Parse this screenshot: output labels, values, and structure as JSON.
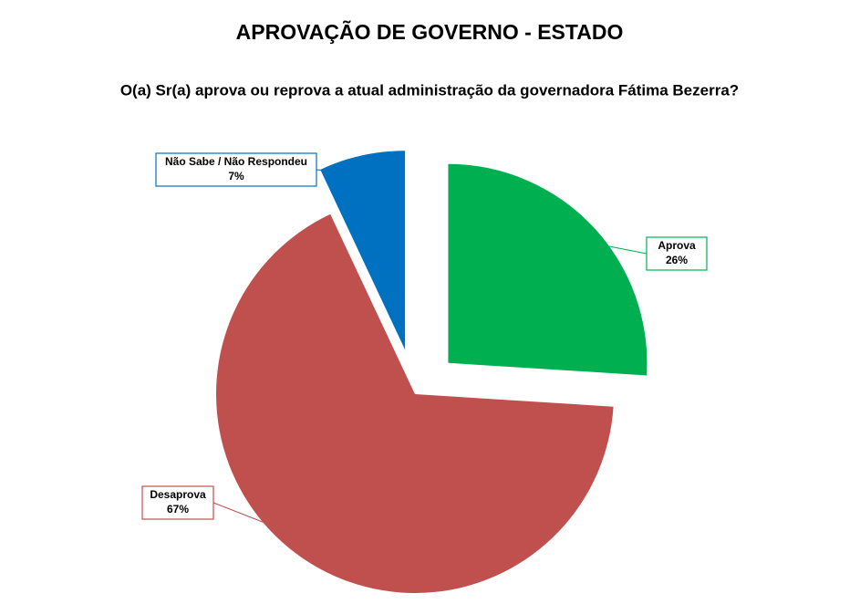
{
  "chart_data": {
    "type": "pie",
    "title": "APROVAÇÃO DE GOVERNO - ESTADO",
    "subtitle": "O(a) Sr(a) aprova ou reprova a atual administração da governadora Fátima Bezerra?",
    "categories": [
      "Aprova",
      "Desaprova",
      "Não Sabe / Não Respondeu"
    ],
    "values": [
      26,
      67,
      7
    ],
    "value_labels": [
      "26%",
      "67%",
      "7%"
    ],
    "colors": [
      "#00b050",
      "#c0504d",
      "#0070c0"
    ],
    "exploded": [
      true,
      false,
      true
    ]
  }
}
